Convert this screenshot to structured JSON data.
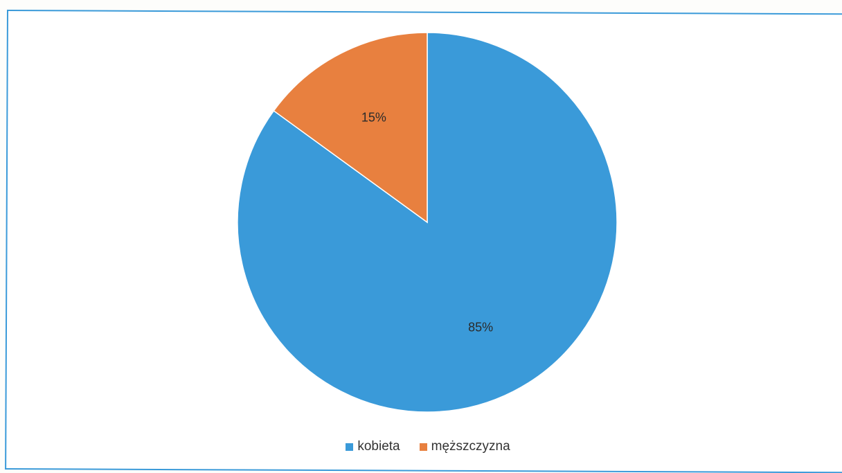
{
  "chart_data": {
    "type": "pie",
    "title": "",
    "categories": [
      "kobieta",
      "męższczyzna"
    ],
    "values": [
      85,
      15
    ],
    "labels": [
      "85%",
      "15%"
    ],
    "colors": [
      "#3a9ad9",
      "#e8803f"
    ],
    "start_angle_deg": 0,
    "direction": "clockwise",
    "legend_position": "bottom"
  }
}
